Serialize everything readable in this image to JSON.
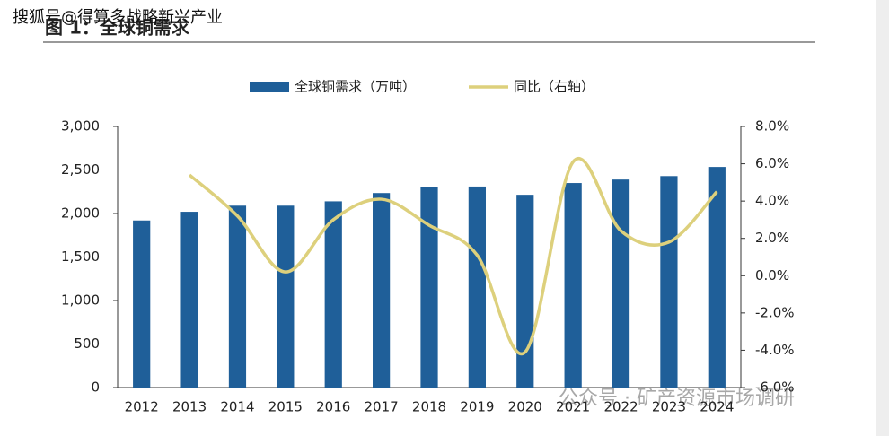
{
  "chart_data": {
    "type": "bar_line",
    "title": "图 1：全球铜需求",
    "annotations": [
      "搜狐号@得算多战略新兴产业",
      "公众号 · 矿产资源市场调研"
    ],
    "categories": [
      "2012",
      "2013",
      "2014",
      "2015",
      "2016",
      "2017",
      "2018",
      "2019",
      "2020",
      "2021",
      "2022",
      "2023",
      "2024"
    ],
    "series": [
      {
        "name": "全球铜需求（万吨）",
        "type": "bar",
        "color": "#1f5f99",
        "values": [
          1920,
          2020,
          2090,
          2090,
          2140,
          2235,
          2300,
          2310,
          2215,
          2350,
          2390,
          2430,
          2535
        ]
      },
      {
        "name": "同比（右轴）",
        "type": "line",
        "axis": "y2",
        "color": "#ddd07c",
        "values": [
          null,
          5.4,
          3.2,
          0.2,
          3.0,
          4.1,
          2.7,
          1.1,
          -4.1,
          6.1,
          2.4,
          1.8,
          4.5
        ]
      }
    ],
    "ylim": [
      0,
      3000
    ],
    "yticks": [
      0,
      500,
      {
        "value": 1000,
        "label": "1,000"
      },
      {
        "value": 1500,
        "label": "1,500"
      },
      {
        "value": 2000,
        "label": "2,000"
      },
      {
        "value": 2500,
        "label": "2,500"
      },
      {
        "value": 3000,
        "label": "3,000"
      }
    ],
    "y2lim": [
      -6,
      8
    ],
    "y2ticks": [
      {
        "value": -6,
        "label": "-6.0%"
      },
      {
        "value": -4,
        "label": "-4.0%"
      },
      {
        "value": -2,
        "label": "-2.0%"
      },
      {
        "value": 0,
        "label": "0.0%"
      },
      {
        "value": 2,
        "label": "2.0%"
      },
      {
        "value": 4,
        "label": "4.0%"
      },
      {
        "value": 6,
        "label": "6.0%"
      },
      {
        "value": 8,
        "label": "8.0%"
      }
    ],
    "legend": "top",
    "grid": false
  }
}
